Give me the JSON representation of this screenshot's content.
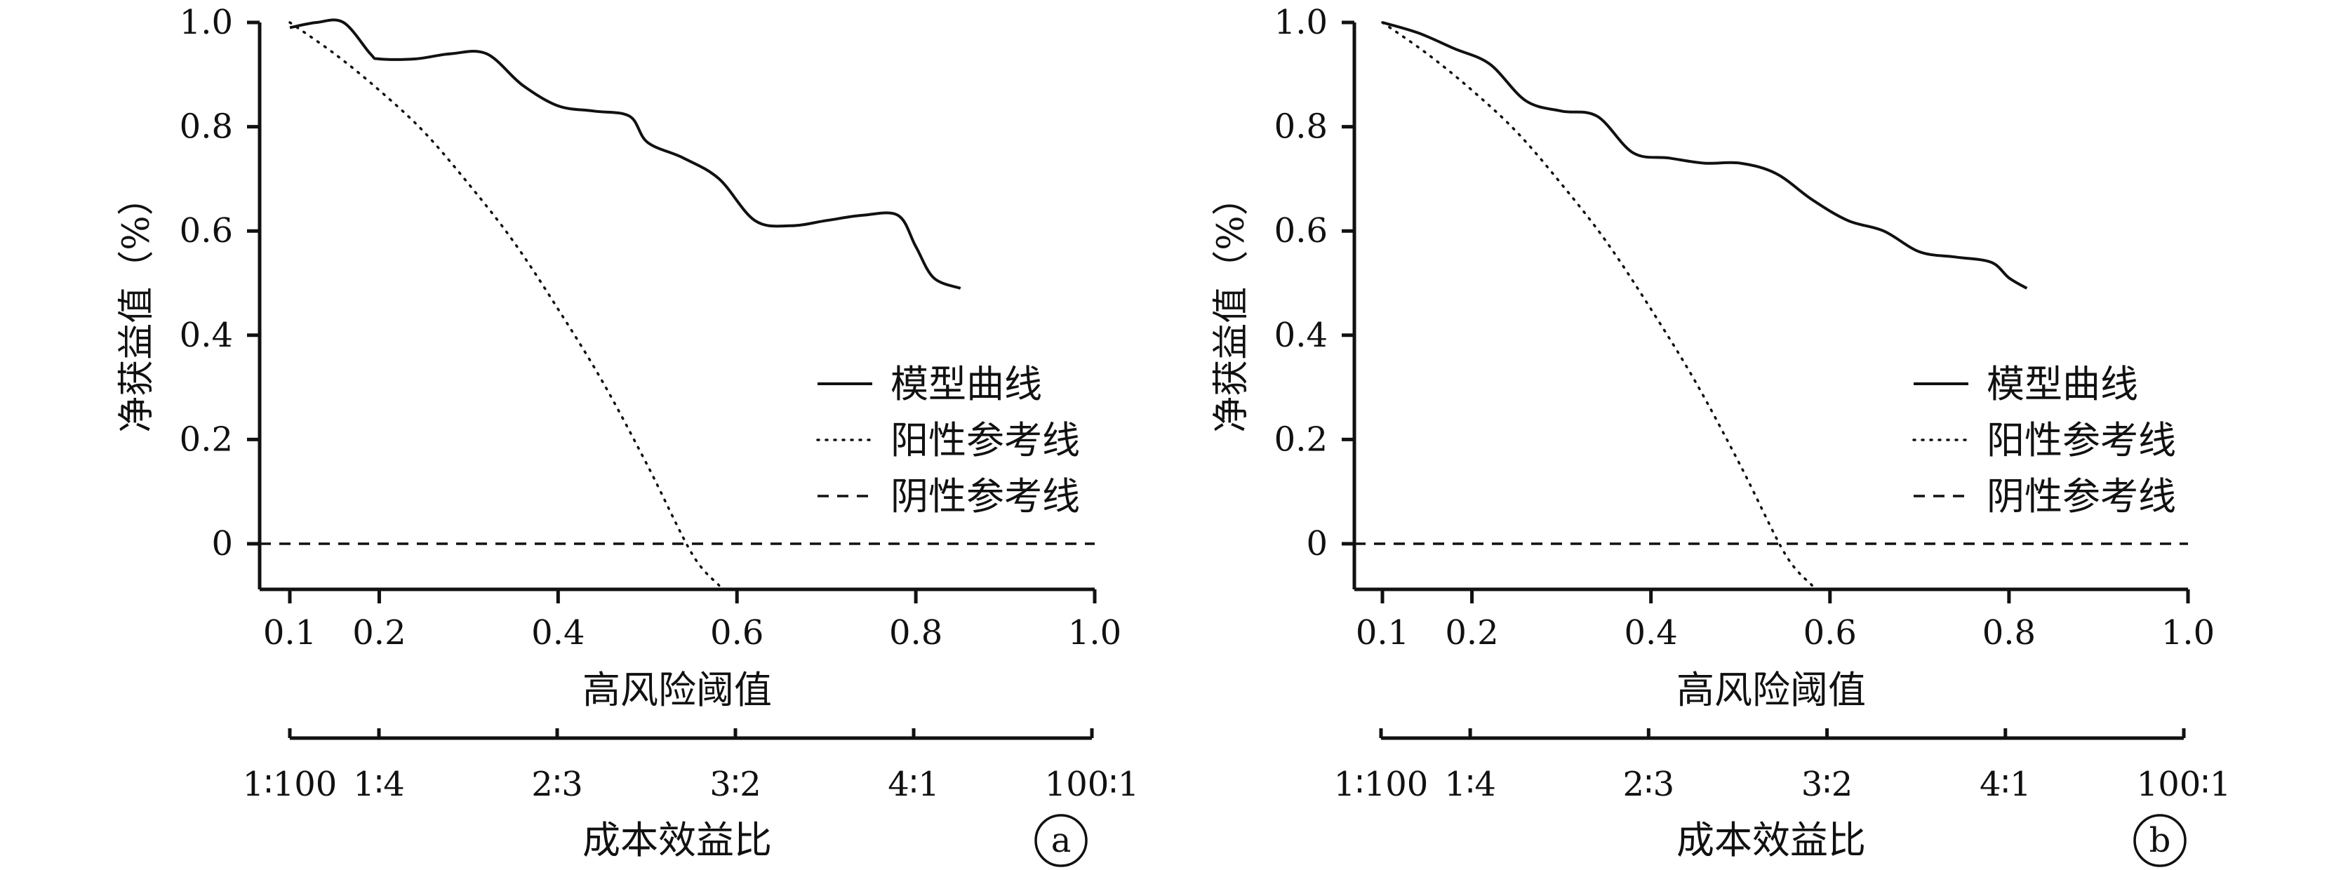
{
  "chart_data": [
    {
      "type": "line",
      "panel_label": "a",
      "xlabel": "高风险阈值",
      "ylabel": "净获益值（%）",
      "xticks": [
        0.1,
        0.2,
        0.4,
        0.6,
        0.8,
        1.0
      ],
      "xtick_labels": [
        "0.1",
        "0.2",
        "0.4",
        "0.6",
        "0.8",
        "1.0"
      ],
      "yticks": [
        0,
        0.2,
        0.4,
        0.6,
        0.8,
        1.0
      ],
      "ytick_labels": [
        "0",
        "0.2",
        "0.4",
        "0.6",
        "0.8",
        "1.0"
      ],
      "xlim": [
        0.06,
        1.0
      ],
      "ylim": [
        -0.09,
        1.0
      ],
      "grid": false,
      "legend_position": "right",
      "secondary_axis": {
        "label": "成本效益比",
        "ticks_at": [
          0.1,
          0.2,
          0.4,
          0.6,
          0.8,
          1.0
        ],
        "tick_labels": [
          "1∶100",
          "1∶4",
          "2∶3",
          "3∶2",
          "4∶1",
          "100∶1"
        ]
      },
      "series": [
        {
          "name": "模型曲线",
          "style": "solid",
          "x": [
            0.1,
            0.13,
            0.16,
            0.19,
            0.2,
            0.24,
            0.28,
            0.32,
            0.36,
            0.4,
            0.44,
            0.48,
            0.5,
            0.54,
            0.58,
            0.62,
            0.66,
            0.7,
            0.74,
            0.78,
            0.8,
            0.82,
            0.85
          ],
          "y": [
            0.99,
            1.0,
            1.0,
            0.94,
            0.93,
            0.93,
            0.94,
            0.94,
            0.88,
            0.84,
            0.83,
            0.82,
            0.77,
            0.74,
            0.7,
            0.62,
            0.61,
            0.62,
            0.63,
            0.63,
            0.57,
            0.51,
            0.49
          ]
        },
        {
          "name": "阳性参考线",
          "style": "dotted",
          "x": [
            0.1,
            0.15,
            0.2,
            0.25,
            0.3,
            0.35,
            0.4,
            0.45,
            0.5,
            0.55,
            0.58
          ],
          "y": [
            1.0,
            0.94,
            0.87,
            0.79,
            0.69,
            0.58,
            0.45,
            0.31,
            0.15,
            -0.02,
            -0.08
          ]
        },
        {
          "name": "阴性参考线",
          "style": "dashed",
          "x": [
            0.06,
            1.0
          ],
          "y": [
            0,
            0
          ]
        }
      ]
    },
    {
      "type": "line",
      "panel_label": "b",
      "xlabel": "高风险阈值",
      "ylabel": "净获益值（%）",
      "xticks": [
        0.1,
        0.2,
        0.4,
        0.6,
        0.8,
        1.0
      ],
      "xtick_labels": [
        "0.1",
        "0.2",
        "0.4",
        "0.6",
        "0.8",
        "1.0"
      ],
      "yticks": [
        0,
        0.2,
        0.4,
        0.6,
        0.8,
        1.0
      ],
      "ytick_labels": [
        "0",
        "0.2",
        "0.4",
        "0.6",
        "0.8",
        "1.0"
      ],
      "xlim": [
        0.06,
        1.0
      ],
      "ylim": [
        -0.09,
        1.0
      ],
      "grid": false,
      "legend_position": "right",
      "secondary_axis": {
        "label": "成本效益比",
        "ticks_at": [
          0.1,
          0.2,
          0.4,
          0.6,
          0.8,
          1.0
        ],
        "tick_labels": [
          "1∶100",
          "1∶4",
          "2∶3",
          "3∶2",
          "4∶1",
          "100∶1"
        ]
      },
      "series": [
        {
          "name": "模型曲线",
          "style": "solid",
          "x": [
            0.1,
            0.14,
            0.18,
            0.22,
            0.26,
            0.3,
            0.34,
            0.38,
            0.42,
            0.46,
            0.5,
            0.54,
            0.58,
            0.62,
            0.66,
            0.7,
            0.74,
            0.78,
            0.8,
            0.82
          ],
          "y": [
            1.0,
            0.98,
            0.95,
            0.92,
            0.85,
            0.83,
            0.82,
            0.75,
            0.74,
            0.73,
            0.73,
            0.71,
            0.66,
            0.62,
            0.6,
            0.56,
            0.55,
            0.54,
            0.51,
            0.49
          ]
        },
        {
          "name": "阳性参考线",
          "style": "dotted",
          "x": [
            0.1,
            0.15,
            0.2,
            0.25,
            0.3,
            0.35,
            0.4,
            0.45,
            0.5,
            0.55,
            0.58
          ],
          "y": [
            1.0,
            0.94,
            0.87,
            0.79,
            0.69,
            0.58,
            0.45,
            0.31,
            0.15,
            -0.02,
            -0.08
          ]
        },
        {
          "name": "阴性参考线",
          "style": "dashed",
          "x": [
            0.06,
            1.0
          ],
          "y": [
            0,
            0
          ]
        }
      ]
    }
  ]
}
